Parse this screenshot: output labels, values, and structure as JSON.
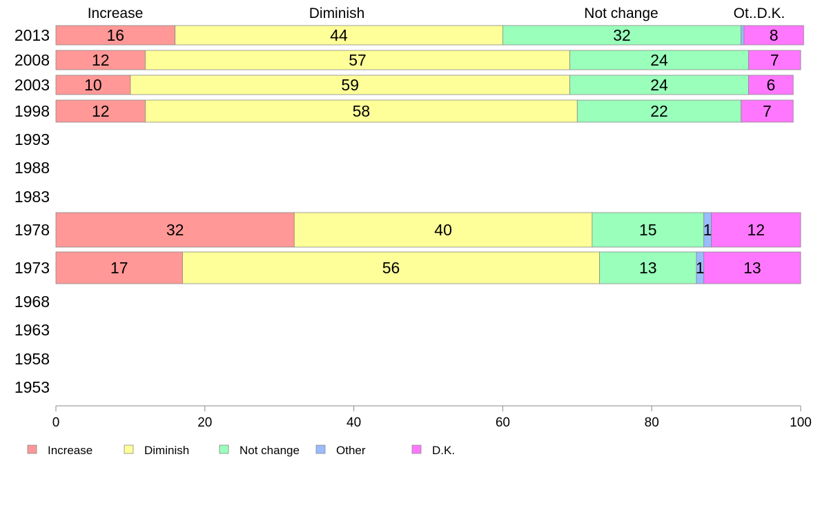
{
  "chart_data": {
    "type": "bar",
    "orientation": "horizontal",
    "stacked": true,
    "categories": [
      "2013",
      "2008",
      "2003",
      "1998",
      "1993",
      "1988",
      "1983",
      "1978",
      "1973",
      "1968",
      "1963",
      "1958",
      "1953"
    ],
    "xlim": [
      0,
      100
    ],
    "x_ticks": [
      0,
      20,
      40,
      60,
      80,
      100
    ],
    "x_tick_labels": [
      "0",
      "20",
      "40",
      "60",
      "80",
      "100"
    ],
    "column_headers": [
      "Increase",
      "Diminish",
      "Not change",
      "Ot..D.K."
    ],
    "legend_position": "bottom",
    "series": [
      {
        "name": "Increase",
        "color": "#ff9896",
        "values": [
          16,
          12,
          10,
          12,
          null,
          null,
          null,
          32,
          17,
          null,
          null,
          null,
          null
        ]
      },
      {
        "name": "Diminish",
        "color": "#ffff99",
        "values": [
          44,
          57,
          59,
          58,
          null,
          null,
          null,
          40,
          56,
          null,
          null,
          null,
          null
        ]
      },
      {
        "name": "Not change",
        "color": "#99ffbb",
        "values": [
          32,
          24,
          24,
          22,
          null,
          null,
          null,
          15,
          13,
          null,
          null,
          null,
          null
        ]
      },
      {
        "name": "Other",
        "color": "#99bbff",
        "values": [
          0.4,
          0,
          0,
          0,
          null,
          null,
          null,
          1,
          1,
          null,
          null,
          null,
          null
        ]
      },
      {
        "name": "D.K.",
        "color": "#ff77ff",
        "values": [
          8,
          7,
          6,
          7,
          null,
          null,
          null,
          12,
          13,
          null,
          null,
          null,
          null
        ]
      }
    ],
    "data_labels": [
      [
        "16",
        "44",
        "32",
        "",
        "8"
      ],
      [
        "12",
        "57",
        "24",
        "",
        "7"
      ],
      [
        "10",
        "59",
        "24",
        "",
        "6"
      ],
      [
        "12",
        "58",
        "22",
        "",
        "7"
      ],
      null,
      null,
      null,
      [
        "32",
        "40",
        "15",
        "1",
        "12"
      ],
      [
        "17",
        "56",
        "13",
        "1",
        "13"
      ],
      null,
      null,
      null,
      null
    ]
  }
}
